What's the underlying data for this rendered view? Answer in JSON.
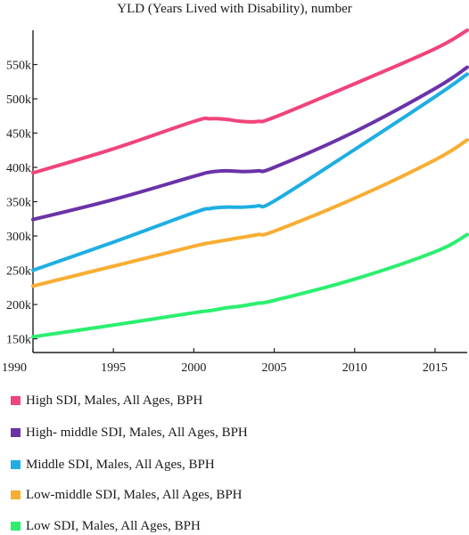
{
  "chart_data": {
    "type": "line",
    "title": "YLD (Years Lived with Disability), number",
    "xlabel": "",
    "ylabel": "",
    "x": [
      1990,
      1995,
      2000,
      2001,
      2002,
      2003,
      2004,
      2005,
      2010,
      2015,
      2017
    ],
    "xlim": [
      1990,
      2017
    ],
    "ylim": [
      130000,
      600000
    ],
    "x_ticks": [
      1990,
      1995,
      2000,
      2005,
      2010,
      2015
    ],
    "x_tick_labels": [
      "1990",
      "1995",
      "2000",
      "2005",
      "2010",
      "2015"
    ],
    "y_ticks": [
      150000,
      200000,
      250000,
      300000,
      350000,
      400000,
      450000,
      500000,
      550000
    ],
    "y_tick_labels": [
      "150k",
      "200k",
      "250k",
      "300k",
      "350k",
      "400k",
      "450k",
      "500k",
      "550k"
    ],
    "grid": false,
    "legend_position": "bottom",
    "series": [
      {
        "name": "High SDI, Males, All Ages, BPH",
        "color": "#f0447a",
        "values": [
          392000,
          427000,
          467000,
          471000,
          470000,
          467000,
          467000,
          473000,
          522000,
          573000,
          600000
        ]
      },
      {
        "name": "High- middle SDI, Males, All Ages, BPH",
        "color": "#6a33a8",
        "values": [
          324000,
          353000,
          387000,
          393000,
          395000,
          394000,
          395000,
          400000,
          452000,
          515000,
          546000
        ]
      },
      {
        "name": "Middle SDI, Males, All Ages, BPH",
        "color": "#1eaee3",
        "values": [
          250000,
          291000,
          334000,
          340000,
          342000,
          342000,
          344000,
          351000,
          426000,
          503000,
          536000
        ]
      },
      {
        "name": "Low-middle SDI, Males, All Ages, BPH",
        "color": "#f8ad33",
        "values": [
          227000,
          256000,
          285000,
          290000,
          294000,
          298000,
          302000,
          307000,
          355000,
          411000,
          440000
        ]
      },
      {
        "name": "Low SDI, Males, All Ages, BPH",
        "color": "#2bef6f",
        "values": [
          153000,
          170000,
          188000,
          191000,
          195000,
          198000,
          202000,
          206000,
          237000,
          277000,
          302000
        ]
      }
    ]
  }
}
